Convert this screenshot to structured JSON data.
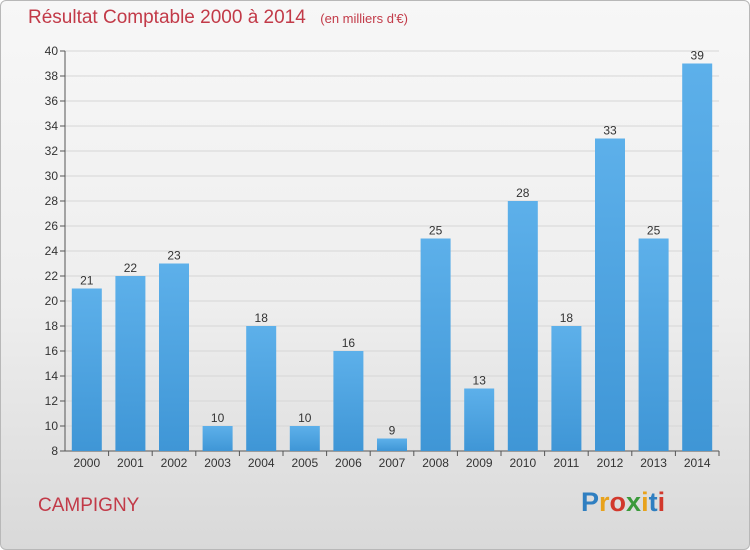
{
  "title": "Résultat Comptable 2000 à 2014",
  "subtitle": "(en milliers d'€)",
  "location": "CAMPIGNY",
  "logo": {
    "letters": [
      "P",
      "r",
      "o",
      "x",
      "i",
      "t",
      "i"
    ],
    "colors": [
      "#2f7fc1",
      "#e8a21c",
      "#d2382c",
      "#3a9a3a",
      "#e8a21c",
      "#2f7fc1",
      "#d2382c"
    ]
  },
  "colors": {
    "bar": "#3f96d6",
    "bar_top": "#5db0ea",
    "title": "#c23a48",
    "grid": "#d6d6d6"
  },
  "chart_data": {
    "type": "bar",
    "title": "Résultat Comptable 2000 à 2014",
    "subtitle": "(en milliers d'€)",
    "categories": [
      "2000",
      "2001",
      "2002",
      "2003",
      "2004",
      "2005",
      "2006",
      "2007",
      "2008",
      "2009",
      "2010",
      "2011",
      "2012",
      "2013",
      "2014"
    ],
    "values": [
      21,
      22,
      23,
      10,
      18,
      10,
      16,
      9,
      25,
      13,
      28,
      18,
      33,
      25,
      39
    ],
    "xlabel": "",
    "ylabel": "",
    "ylim": [
      8,
      40
    ],
    "yticks": [
      8,
      10,
      12,
      14,
      16,
      18,
      20,
      22,
      24,
      26,
      28,
      30,
      32,
      34,
      36,
      38,
      40
    ],
    "grid": true,
    "data_labels": true
  }
}
